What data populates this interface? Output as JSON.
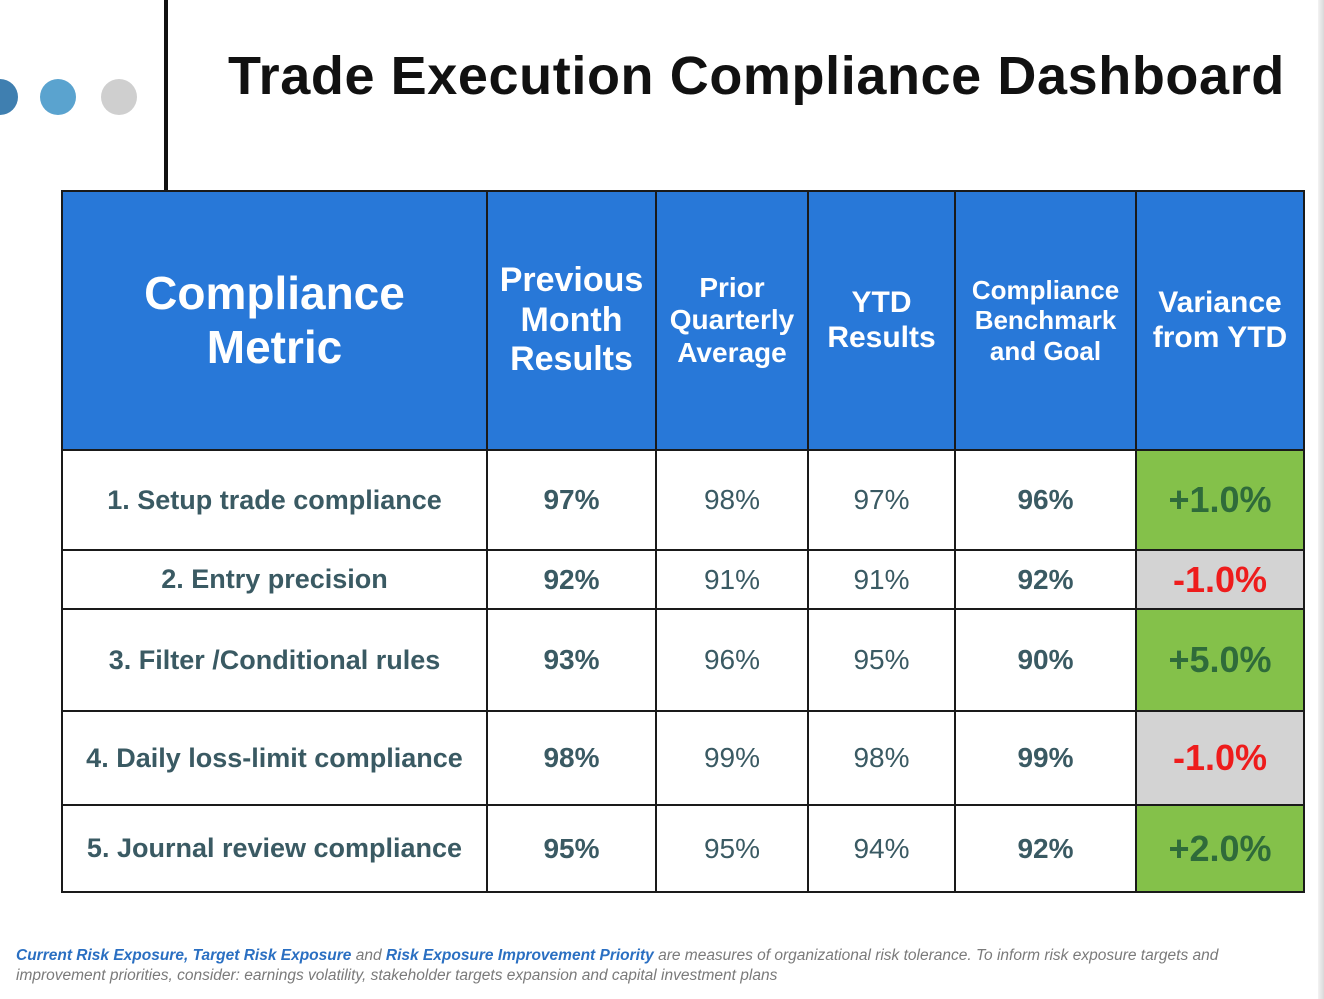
{
  "slide": {
    "title": "Trade Execution Compliance Dashboard",
    "dot_colors": [
      "#3f7fb0",
      "#5aa3cf",
      "#cfcfcf"
    ]
  },
  "table": {
    "headers": [
      {
        "label": "Compliance Metric"
      },
      {
        "label": "Previous Month Results"
      },
      {
        "label": "Prior Quarterly Average"
      },
      {
        "label": "YTD Results"
      },
      {
        "label": "Compliance Benchmark and Goal"
      },
      {
        "label": "Variance from YTD"
      }
    ],
    "rows": [
      {
        "metric": "1. Setup trade compliance",
        "previous_month": "97%",
        "prior_quarter": "98%",
        "ytd": "97%",
        "benchmark": "96%",
        "variance": "+1.0%",
        "variance_status": "positive"
      },
      {
        "metric": "2. Entry precision",
        "previous_month": "92%",
        "prior_quarter": "91%",
        "ytd": "91%",
        "benchmark": "92%",
        "variance": "-1.0%",
        "variance_status": "negative"
      },
      {
        "metric": "3. Filter /Conditional rules",
        "previous_month": "93%",
        "prior_quarter": "96%",
        "ytd": "95%",
        "benchmark": "90%",
        "variance": "+5.0%",
        "variance_status": "positive"
      },
      {
        "metric": "4. Daily loss-limit compliance",
        "previous_month": "98%",
        "prior_quarter": "99%",
        "ytd": "98%",
        "benchmark": "99%",
        "variance": "-1.0%",
        "variance_status": "negative"
      },
      {
        "metric": "5. Journal review compliance",
        "previous_month": "95%",
        "prior_quarter": "95%",
        "ytd": "94%",
        "benchmark": "92%",
        "variance": "+2.0%",
        "variance_status": "positive"
      }
    ]
  },
  "colors": {
    "header_bg": "#2878d8",
    "positive_bg": "#84c14a",
    "positive_text": "#2f6b3a",
    "negative_bg": "#d3d3d3",
    "negative_text": "#ee1c1c"
  },
  "footnote": {
    "term1": "Current Risk Exposure",
    "sep1": ", ",
    "term2": "Target Risk Exposure",
    "sep2": " and ",
    "term3": "Risk Exposure Improvement Priority",
    "rest": " are measures of organizational risk tolerance. To inform risk exposure targets and improvement priorities, consider: earnings volatility, stakeholder targets  expansion and capital investment plans"
  }
}
